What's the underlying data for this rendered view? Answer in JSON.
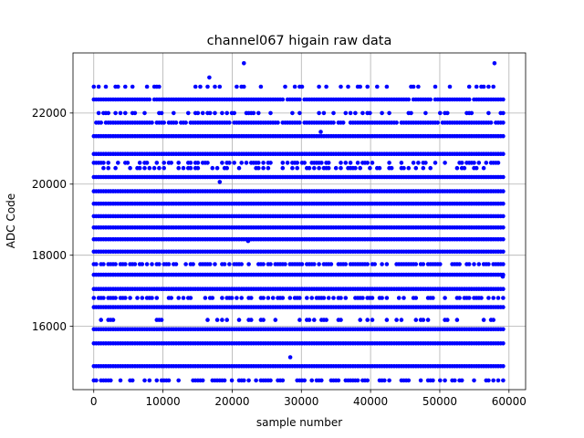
{
  "chart_data": {
    "type": "scatter",
    "title": "channel067 higain raw data",
    "xlabel": "sample number",
    "ylabel": "ADC Code",
    "xlim": [
      -3000,
      62400
    ],
    "ylim": [
      14220,
      23690
    ],
    "grid": true,
    "marker_color": "#0000ff",
    "x_ticks": [
      0,
      10000,
      20000,
      30000,
      40000,
      50000,
      60000
    ],
    "x_tick_labels": [
      "0",
      "10000",
      "20000",
      "30000",
      "40000",
      "50000",
      "60000"
    ],
    "y_ticks": [
      16000,
      18000,
      20000,
      22000
    ],
    "y_tick_labels": [
      "16000",
      "18000",
      "20000",
      "22000"
    ],
    "sample_range": [
      0,
      59400
    ],
    "levels": [
      {
        "y": 14480,
        "density": 0.55
      },
      {
        "y": 14880,
        "density": 1.0
      },
      {
        "y": 15150,
        "density": 0.0
      },
      {
        "y": 15520,
        "density": 1.0
      },
      {
        "y": 15920,
        "density": 1.0
      },
      {
        "y": 16180,
        "density": 0.25
      },
      {
        "y": 16540,
        "density": 1.0
      },
      {
        "y": 16800,
        "density": 0.5
      },
      {
        "y": 17050,
        "density": 1.0
      },
      {
        "y": 17450,
        "density": 1.0
      },
      {
        "y": 17750,
        "density": 0.7
      },
      {
        "y": 18100,
        "density": 1.0
      },
      {
        "y": 18450,
        "density": 1.0
      },
      {
        "y": 18780,
        "density": 1.0
      },
      {
        "y": 19100,
        "density": 1.0
      },
      {
        "y": 19450,
        "density": 1.0
      },
      {
        "y": 19800,
        "density": 1.0
      },
      {
        "y": 20200,
        "density": 1.0
      },
      {
        "y": 20450,
        "density": 0.3
      },
      {
        "y": 20600,
        "density": 0.45
      },
      {
        "y": 20850,
        "density": 1.0
      },
      {
        "y": 21350,
        "density": 1.0
      },
      {
        "y": 21730,
        "density": 0.9
      },
      {
        "y": 22000,
        "density": 0.35
      },
      {
        "y": 22380,
        "density": 0.95
      },
      {
        "y": 22740,
        "density": 0.25
      }
    ],
    "outliers": [
      {
        "x": 28400,
        "y": 15130
      },
      {
        "x": 21700,
        "y": 23400
      },
      {
        "x": 57900,
        "y": 23400
      },
      {
        "x": 16700,
        "y": 23000
      },
      {
        "x": 18200,
        "y": 20060
      },
      {
        "x": 22300,
        "y": 18400
      },
      {
        "x": 32800,
        "y": 21470
      },
      {
        "x": 59100,
        "y": 17400
      }
    ]
  }
}
